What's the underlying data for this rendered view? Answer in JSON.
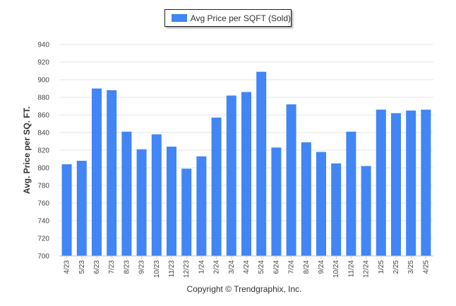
{
  "chart_data": {
    "type": "bar",
    "legend": "Avg Price per SQFT (Sold)",
    "legend_position": "top-center",
    "ylabel": "Avg. Price per SQ. FT.",
    "xlabel": "",
    "ylim": [
      700,
      940
    ],
    "y_ticks": [
      700,
      720,
      740,
      760,
      780,
      800,
      820,
      840,
      860,
      880,
      900,
      920,
      940
    ],
    "grid": true,
    "bar_color": "#4285f4",
    "categories": [
      "4/23",
      "5/23",
      "6/23",
      "7/23",
      "8/23",
      "9/23",
      "10/23",
      "11/23",
      "12/23",
      "1/24",
      "2/24",
      "3/24",
      "4/24",
      "5/24",
      "6/24",
      "7/24",
      "8/24",
      "9/24",
      "10/24",
      "11/24",
      "12/24",
      "1/25",
      "2/25",
      "3/25",
      "4/25"
    ],
    "series": [
      {
        "name": "Avg Price per SQFT (Sold)",
        "values": [
          804,
          808,
          890,
          888,
          841,
          821,
          838,
          824,
          799,
          813,
          857,
          882,
          886,
          909,
          823,
          872,
          829,
          818,
          805,
          841,
          802,
          866,
          862,
          865,
          866
        ]
      }
    ]
  },
  "footer": {
    "copyright": "Copyright © Trendgraphix, Inc."
  }
}
